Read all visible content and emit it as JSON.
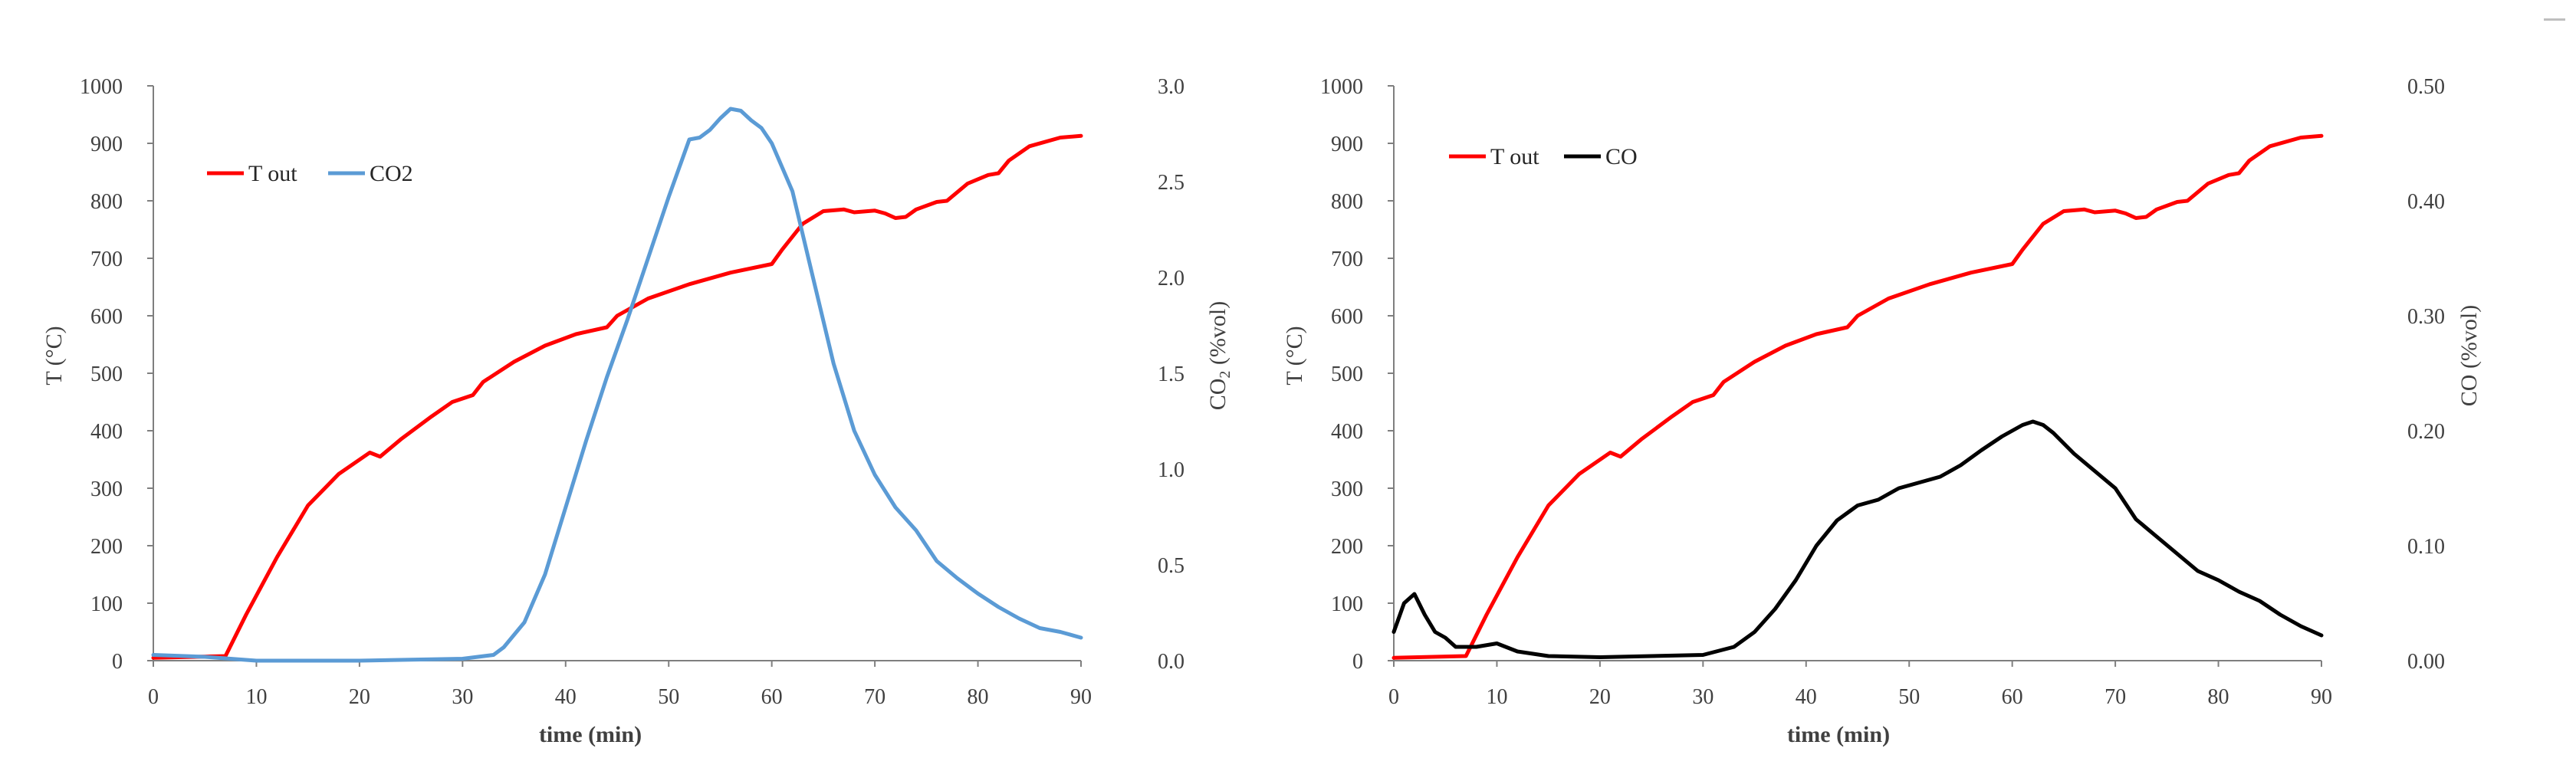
{
  "colors": {
    "t_out": "#ff0000",
    "co2": "#5b9bd5",
    "co": "#000000",
    "axis": "#7f7f7f"
  },
  "chart_data": [
    {
      "type": "line",
      "xlabel": "time (min)",
      "ylabel": "T  (°C)",
      "y2label_main": "CO",
      "y2label_sub": "2",
      "y2label_rest": " (%vol)",
      "xlim": [
        0,
        90
      ],
      "xticks": [
        0,
        10,
        20,
        30,
        40,
        50,
        60,
        70,
        80,
        90
      ],
      "ylim": [
        0,
        1000
      ],
      "yticks": [
        0,
        100,
        200,
        300,
        400,
        500,
        600,
        700,
        800,
        900,
        1000
      ],
      "y2lim": [
        0,
        3.0
      ],
      "y2ticks": [
        "0.0",
        "0.5",
        "1.0",
        "1.5",
        "2.0",
        "2.5",
        "3.0"
      ],
      "legend": [
        "T out",
        "CO2"
      ],
      "series": [
        {
          "name": "T out",
          "axis": "left",
          "color": "#ff0000",
          "x": [
            0,
            7,
            9,
            12,
            15,
            18,
            21,
            22,
            24,
            27,
            29,
            31,
            32,
            35,
            38,
            41,
            44,
            45,
            48,
            52,
            56,
            60,
            61,
            63,
            65,
            67,
            68,
            70,
            71,
            72,
            73,
            74,
            76,
            77,
            79,
            81,
            82,
            83,
            85,
            88,
            90
          ],
          "y": [
            5,
            8,
            80,
            180,
            270,
            325,
            362,
            355,
            385,
            425,
            450,
            462,
            485,
            520,
            548,
            568,
            580,
            600,
            630,
            655,
            675,
            690,
            715,
            760,
            782,
            785,
            780,
            783,
            778,
            770,
            772,
            785,
            798,
            800,
            830,
            845,
            848,
            870,
            895,
            910,
            913
          ]
        },
        {
          "name": "CO2",
          "axis": "right",
          "color": "#5b9bd5",
          "x": [
            0,
            5,
            10,
            20,
            30,
            33,
            34,
            36,
            38,
            40,
            42,
            44,
            46,
            48,
            50,
            52,
            53,
            54,
            55,
            56,
            57,
            58,
            59,
            60,
            62,
            64,
            66,
            68,
            70,
            72,
            74,
            76,
            78,
            80,
            82,
            84,
            86,
            88,
            90
          ],
          "y": [
            0.03,
            0.02,
            0.0,
            0.0,
            0.01,
            0.03,
            0.07,
            0.2,
            0.45,
            0.8,
            1.15,
            1.48,
            1.78,
            2.1,
            2.42,
            2.72,
            2.73,
            2.77,
            2.83,
            2.88,
            2.87,
            2.82,
            2.78,
            2.7,
            2.45,
            2.0,
            1.55,
            1.2,
            0.97,
            0.8,
            0.68,
            0.52,
            0.43,
            0.35,
            0.28,
            0.22,
            0.17,
            0.15,
            0.12
          ]
        }
      ]
    },
    {
      "type": "line",
      "xlabel": "time (min)",
      "ylabel": "T  (°C)",
      "y2label": "CO (%vol)",
      "xlim": [
        0,
        90
      ],
      "xticks": [
        0,
        10,
        20,
        30,
        40,
        50,
        60,
        70,
        80,
        90
      ],
      "ylim": [
        0,
        1000
      ],
      "yticks": [
        0,
        100,
        200,
        300,
        400,
        500,
        600,
        700,
        800,
        900,
        1000
      ],
      "y2lim": [
        0,
        0.5
      ],
      "y2ticks": [
        "0.00",
        "0.10",
        "0.20",
        "0.30",
        "0.40",
        "0.50"
      ],
      "legend": [
        "T out",
        "CO"
      ],
      "series": [
        {
          "name": "T out",
          "axis": "left",
          "color": "#ff0000",
          "x": [
            0,
            7,
            9,
            12,
            15,
            18,
            21,
            22,
            24,
            27,
            29,
            31,
            32,
            35,
            38,
            41,
            44,
            45,
            48,
            52,
            56,
            60,
            61,
            63,
            65,
            67,
            68,
            70,
            71,
            72,
            73,
            74,
            76,
            77,
            79,
            81,
            82,
            83,
            85,
            88,
            90
          ],
          "y": [
            5,
            8,
            80,
            180,
            270,
            325,
            362,
            355,
            385,
            425,
            450,
            462,
            485,
            520,
            548,
            568,
            580,
            600,
            630,
            655,
            675,
            690,
            715,
            760,
            782,
            785,
            780,
            783,
            778,
            770,
            772,
            785,
            798,
            800,
            830,
            845,
            848,
            870,
            895,
            910,
            913
          ]
        },
        {
          "name": "CO",
          "axis": "right",
          "color": "#000000",
          "x": [
            0,
            1,
            2,
            3,
            4,
            5,
            6,
            8,
            10,
            12,
            15,
            20,
            25,
            30,
            33,
            35,
            37,
            39,
            41,
            43,
            45,
            47,
            49,
            51,
            53,
            55,
            57,
            59,
            61,
            62,
            63,
            64,
            66,
            68,
            70,
            72,
            74,
            76,
            78,
            80,
            82,
            84,
            86,
            88,
            90
          ],
          "y": [
            0.025,
            0.05,
            0.058,
            0.04,
            0.025,
            0.02,
            0.012,
            0.012,
            0.015,
            0.008,
            0.004,
            0.003,
            0.004,
            0.005,
            0.012,
            0.025,
            0.045,
            0.07,
            0.1,
            0.122,
            0.135,
            0.14,
            0.15,
            0.155,
            0.16,
            0.17,
            0.183,
            0.195,
            0.205,
            0.208,
            0.205,
            0.198,
            0.18,
            0.165,
            0.15,
            0.123,
            0.108,
            0.093,
            0.078,
            0.07,
            0.06,
            0.052,
            0.04,
            0.03,
            0.022
          ]
        }
      ]
    }
  ]
}
